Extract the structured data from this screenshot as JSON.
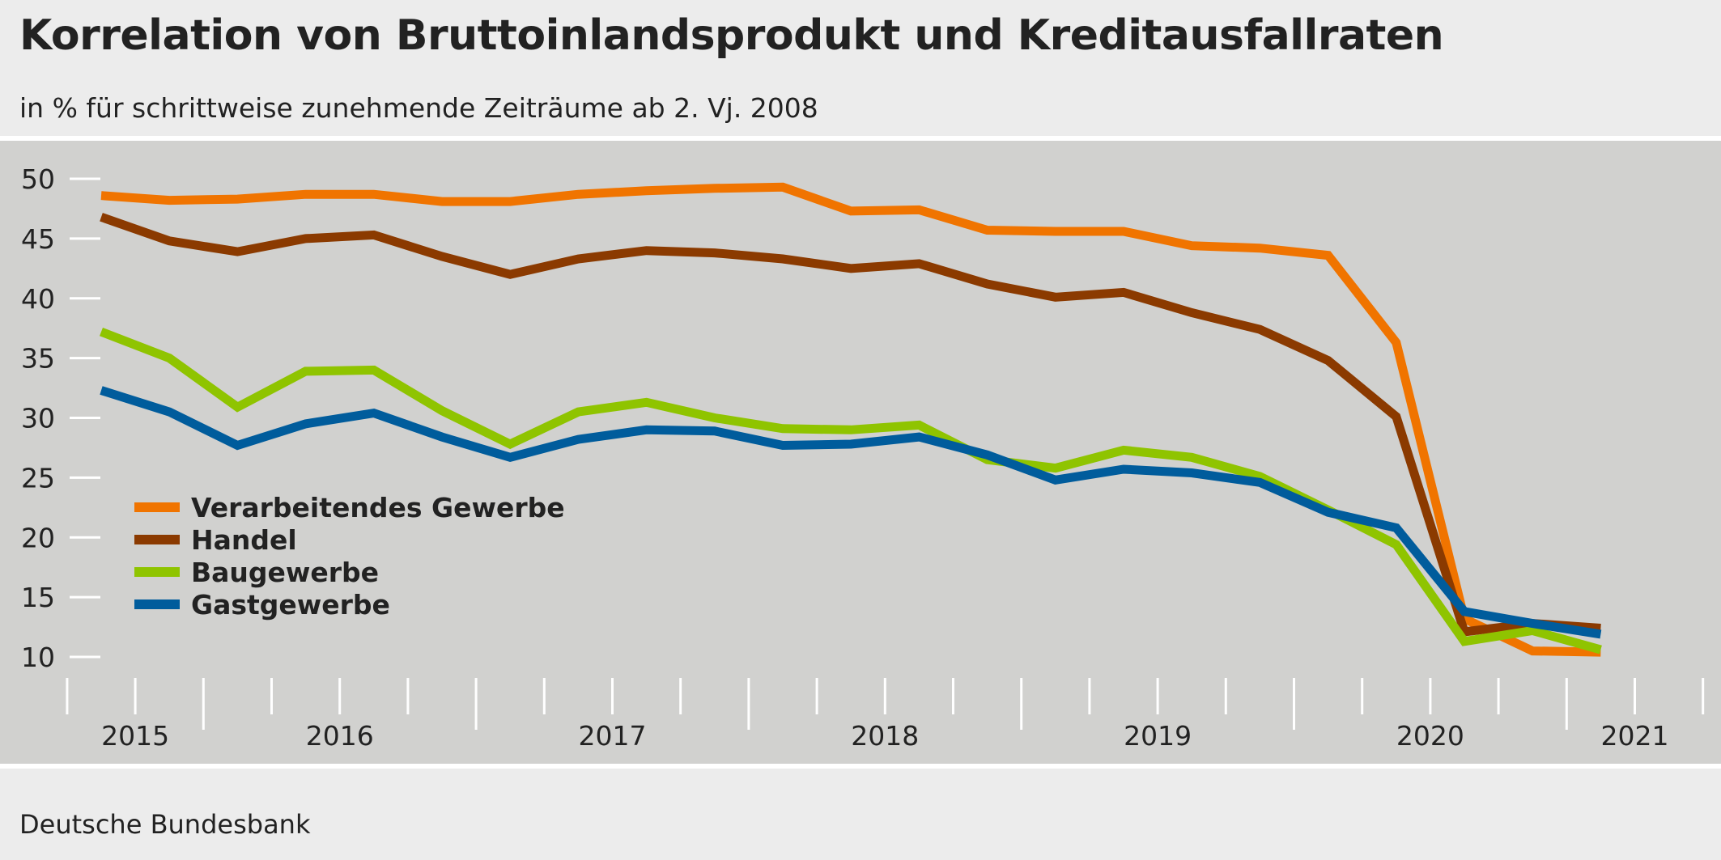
{
  "title": "Korrelation von Bruttoinlandsprodukt und Kreditausfallraten",
  "subtitle": "in % für schrittweise zunehmende Zeiträume ab 2. Vj. 2008",
  "footer": "Deutsche Bundesbank",
  "chart_data": {
    "type": "line",
    "title": "Korrelation von Bruttoinlandsprodukt und Kreditausfallraten",
    "ylim": [
      10,
      50
    ],
    "yticks": [
      10,
      15,
      20,
      25,
      30,
      35,
      40,
      45,
      50
    ],
    "year_labels": [
      "2015",
      "2016",
      "2017",
      "2018",
      "2019",
      "2020",
      "2021"
    ],
    "x": [
      "2015 Q3",
      "2015 Q4",
      "2016 Q1",
      "2016 Q2",
      "2016 Q3",
      "2016 Q4",
      "2017 Q1",
      "2017 Q2",
      "2017 Q3",
      "2017 Q4",
      "2018 Q1",
      "2018 Q2",
      "2018 Q3",
      "2018 Q4",
      "2019 Q1",
      "2019 Q2",
      "2019 Q3",
      "2019 Q4",
      "2020 Q1",
      "2020 Q2",
      "2020 Q3",
      "2020 Q4",
      "2021 Q1"
    ],
    "legend_position": "bottom-left",
    "grid": false,
    "series": [
      {
        "name": "Verarbeitendes Gewerbe",
        "color": "#f07400",
        "values": [
          48.6,
          48.2,
          48.3,
          48.7,
          48.7,
          48.1,
          48.1,
          48.7,
          49.0,
          49.2,
          49.3,
          47.3,
          47.4,
          45.7,
          45.6,
          45.6,
          44.4,
          44.2,
          43.6,
          36.3,
          13.2,
          10.5,
          10.4
        ]
      },
      {
        "name": "Handel",
        "color": "#8b3a00",
        "values": [
          46.8,
          44.8,
          43.9,
          45.0,
          45.3,
          43.5,
          42.0,
          43.3,
          44.0,
          43.8,
          43.3,
          42.5,
          42.9,
          41.2,
          40.1,
          40.5,
          38.8,
          37.4,
          34.8,
          30.1,
          12.1,
          12.8,
          12.4
        ]
      },
      {
        "name": "Baugewerbe",
        "color": "#8fc400",
        "values": [
          37.2,
          35.0,
          30.9,
          33.9,
          34.0,
          30.6,
          27.8,
          30.5,
          31.3,
          30.0,
          29.1,
          29.0,
          29.4,
          26.5,
          25.8,
          27.3,
          26.7,
          25.1,
          22.3,
          19.4,
          11.3,
          12.2,
          10.6
        ]
      },
      {
        "name": "Gastgewerbe",
        "color": "#005c9c",
        "values": [
          32.3,
          30.5,
          27.7,
          29.5,
          30.4,
          28.4,
          26.7,
          28.2,
          29.0,
          28.9,
          27.7,
          27.8,
          28.4,
          26.9,
          24.8,
          25.7,
          25.4,
          24.6,
          22.1,
          20.8,
          13.8,
          12.8,
          11.9
        ]
      }
    ]
  }
}
